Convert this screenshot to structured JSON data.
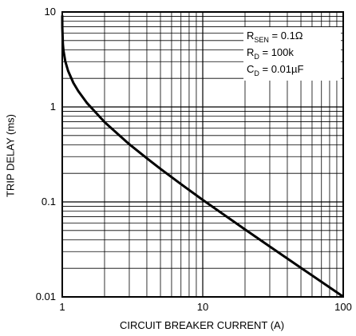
{
  "chart_data": {
    "type": "line",
    "xlabel": "CIRCUIT BREAKER CURRENT (A)",
    "ylabel": "TRIP DELAY (ms)",
    "log_x": true,
    "log_y": true,
    "grid": true,
    "xlim": [
      1,
      100
    ],
    "ylim": [
      0.01,
      10
    ],
    "xticks": [
      1,
      10,
      100
    ],
    "yticks": [
      0.01,
      0.1,
      1,
      10
    ],
    "x_minor_grid": [
      2,
      3,
      4,
      5,
      6,
      7,
      8,
      9,
      20,
      30,
      40,
      50,
      60,
      70,
      80,
      90
    ],
    "y_minor_grid": [
      0.02,
      0.03,
      0.04,
      0.05,
      0.06,
      0.07,
      0.08,
      0.09,
      0.2,
      0.3,
      0.4,
      0.5,
      0.6,
      0.7,
      0.8,
      0.9,
      2,
      3,
      4,
      5,
      6,
      7,
      8,
      9
    ],
    "annotations": [
      {
        "symbol": "R",
        "sub": "SEN",
        "text": " = 0.1Ω"
      },
      {
        "symbol": "R",
        "sub": "D",
        "text": " = 100k"
      },
      {
        "symbol": "C",
        "sub": "D",
        "text": " = 0.01µF"
      }
    ],
    "series": [
      {
        "name": "Trip delay",
        "color": "#000000",
        "x": [
          1.0001,
          1.001,
          1.01,
          1.02,
          1.05,
          1.1,
          1.2,
          1.3,
          1.5,
          2,
          3,
          4,
          5,
          7,
          10,
          20,
          30,
          50,
          70,
          100
        ],
        "values": [
          9.2,
          6.9,
          4.62,
          3.93,
          3.04,
          2.4,
          1.79,
          1.47,
          1.1,
          0.693,
          0.405,
          0.288,
          0.223,
          0.154,
          0.105,
          0.0513,
          0.0339,
          0.0202,
          0.0144,
          0.01005
        ]
      }
    ]
  }
}
